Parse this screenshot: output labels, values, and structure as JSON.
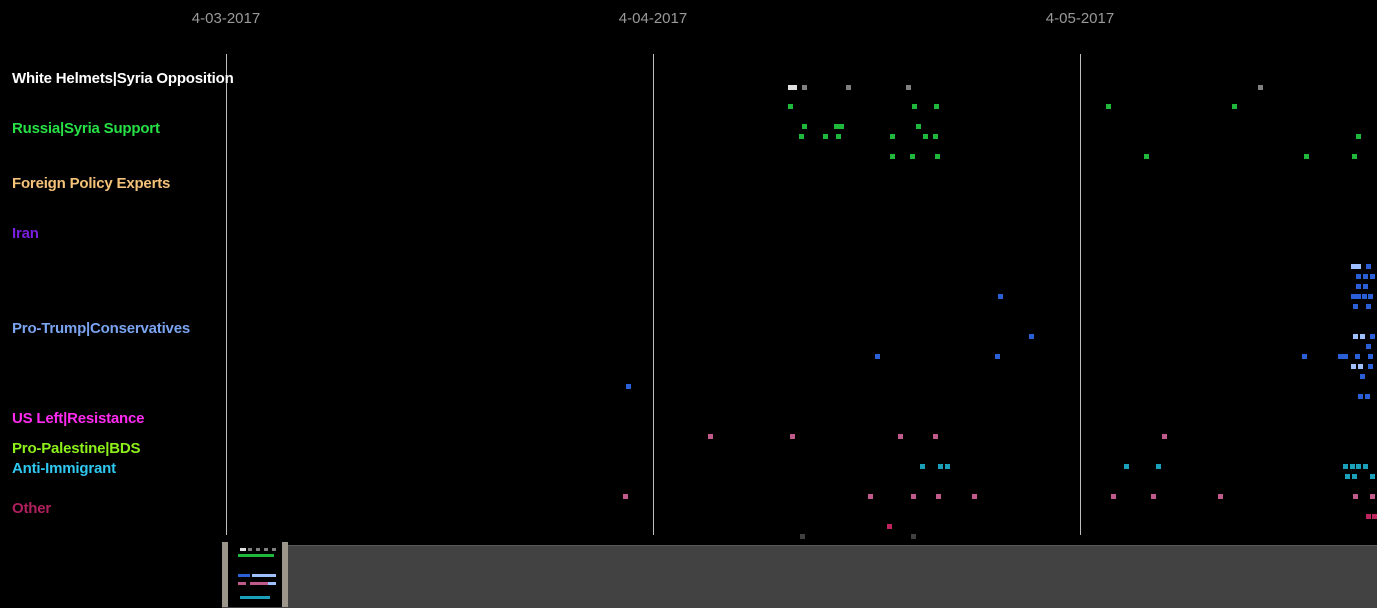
{
  "timeline": {
    "dates": [
      "4-03-2017",
      "4-04-2017",
      "4-05-2017"
    ]
  },
  "groups": [
    {
      "label": "White Helmets|Syria Opposition",
      "color": "#ffffff"
    },
    {
      "label": "Russia|Syria Support",
      "color": "#27e045"
    },
    {
      "label": "Foreign Policy Experts",
      "color": "#f5c27a"
    },
    {
      "label": "Iran",
      "color": "#7a1fe0"
    },
    {
      "label": "Pro-Trump|Conservatives",
      "color": "#7aa4f0"
    },
    {
      "label": "US Left|Resistance",
      "color": "#ff2bf0"
    },
    {
      "label": "Pro-Palestine|BDS",
      "color": "#8df01a"
    },
    {
      "label": "Anti-Immigrant",
      "color": "#2ec8f0"
    },
    {
      "label": "Other",
      "color": "#b0205e"
    }
  ],
  "point_colors": {
    "gray": "#808080",
    "white": "#e0e0e0",
    "green": "#1fb83a",
    "blue": "#2a5fd8",
    "lightblue": "#9fc0ff",
    "teal": "#1aa0b8",
    "mauve": "#c05a8a",
    "magenta": "#c0245e",
    "darkgray": "#404040"
  }
}
